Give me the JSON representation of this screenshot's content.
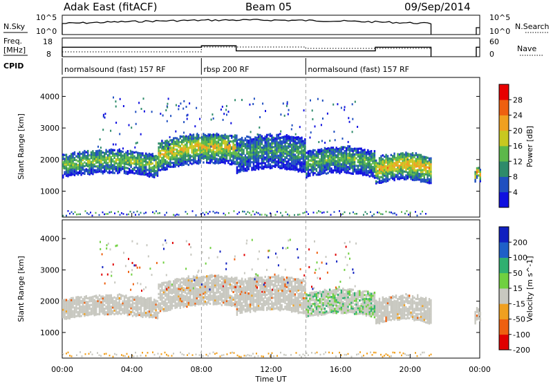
{
  "header": {
    "radar": "Adak East (fitACF)",
    "beam": "Beam 05",
    "date": "09/Sep/2014"
  },
  "panels": {
    "nsky": {
      "left_label": "N.Sky",
      "right_label": "N.Search",
      "left_ticks": [
        "10^5",
        "10^0"
      ],
      "right_ticks": [
        "10^5",
        "10^0"
      ]
    },
    "freq": {
      "left_label_1": "Freq.",
      "left_label_2": "[MHz]",
      "right_label": "Nave",
      "left_ticks": [
        "18",
        "8"
      ],
      "right_ticks": [
        "60",
        "0"
      ]
    },
    "cpid": {
      "label": "CPID",
      "segments": [
        {
          "name": "normalsound (fast) 157 RF",
          "start": 0,
          "end": 8
        },
        {
          "name": "rbsp 200 RF",
          "start": 8,
          "end": 14
        },
        {
          "name": "normalsound (fast) 157 RF",
          "start": 14,
          "end": 24
        }
      ]
    }
  },
  "chart_data": [
    {
      "type": "heatmap",
      "title": "",
      "xlabel": "Time UT",
      "ylabel": "Slant Range [km]",
      "x_ticks": [
        "00:00",
        "04:00",
        "08:00",
        "12:00",
        "16:00",
        "20:00",
        "00:00"
      ],
      "y_ticks": [
        "1000",
        "2000",
        "3000",
        "4000"
      ],
      "xlim": [
        0,
        24
      ],
      "ylim": [
        180,
        4600
      ],
      "colorbar": {
        "label": "Power [dB]",
        "ticks": [
          "4",
          "8",
          "12",
          "16",
          "20",
          "24",
          "28"
        ],
        "colors": [
          "#1010e0",
          "#2050c0",
          "#2e8b6a",
          "#5cb84a",
          "#c8c820",
          "#f0a020",
          "#ee6010",
          "#e80000"
        ]
      },
      "echo_bands": [
        {
          "t_start": 0.0,
          "t_end": 5.5,
          "range_start": 1450,
          "range_end": 2100,
          "level": 18
        },
        {
          "t_start": 5.5,
          "t_end": 10.0,
          "range_start": 1650,
          "range_end": 2500,
          "level": 22
        },
        {
          "t_start": 10.0,
          "t_end": 14.0,
          "range_start": 1600,
          "range_end": 2600,
          "level": 14
        },
        {
          "t_start": 14.0,
          "t_end": 18.0,
          "range_start": 1450,
          "range_end": 2200,
          "level": 16
        },
        {
          "t_start": 18.0,
          "t_end": 21.2,
          "range_start": 1250,
          "range_end": 2000,
          "level": 24
        },
        {
          "t_start": 23.7,
          "t_end": 24.0,
          "range_start": 1300,
          "range_end": 1600,
          "level": 24
        }
      ]
    },
    {
      "type": "heatmap",
      "title": "",
      "xlabel": "Time UT",
      "ylabel": "Slant Range [km]",
      "x_ticks": [
        "00:00",
        "04:00",
        "08:00",
        "12:00",
        "16:00",
        "20:00",
        "00:00"
      ],
      "y_ticks": [
        "1000",
        "2000",
        "3000",
        "4000"
      ],
      "xlim": [
        0,
        24
      ],
      "ylim": [
        180,
        4600
      ],
      "colorbar": {
        "label": "Velocity [m s^-1]",
        "ticks": [
          "200",
          "100",
          "50",
          "15",
          "-15",
          "-50",
          "-100",
          "-200"
        ],
        "colors": [
          "#1020c0",
          "#1e60c8",
          "#30b070",
          "#70d040",
          "#c8c8c0",
          "#f0a020",
          "#ee6010",
          "#e00000"
        ]
      },
      "echo_bands": [
        {
          "t_start": 0.0,
          "t_end": 5.5,
          "range_start": 1450,
          "range_end": 2000,
          "velocity": 0
        },
        {
          "t_start": 5.5,
          "t_end": 10.0,
          "range_start": 1650,
          "range_end": 2500,
          "velocity": 0
        },
        {
          "t_start": 10.0,
          "t_end": 14.0,
          "range_start": 1600,
          "range_end": 2600,
          "velocity": 0
        },
        {
          "t_start": 14.0,
          "t_end": 18.0,
          "range_start": 1500,
          "range_end": 2200,
          "velocity": 30
        },
        {
          "t_start": 18.0,
          "t_end": 21.2,
          "range_start": 1300,
          "range_end": 2000,
          "velocity": 0
        },
        {
          "t_start": 23.7,
          "t_end": 24.0,
          "range_start": 1300,
          "range_end": 1600,
          "velocity": 0
        }
      ]
    }
  ]
}
